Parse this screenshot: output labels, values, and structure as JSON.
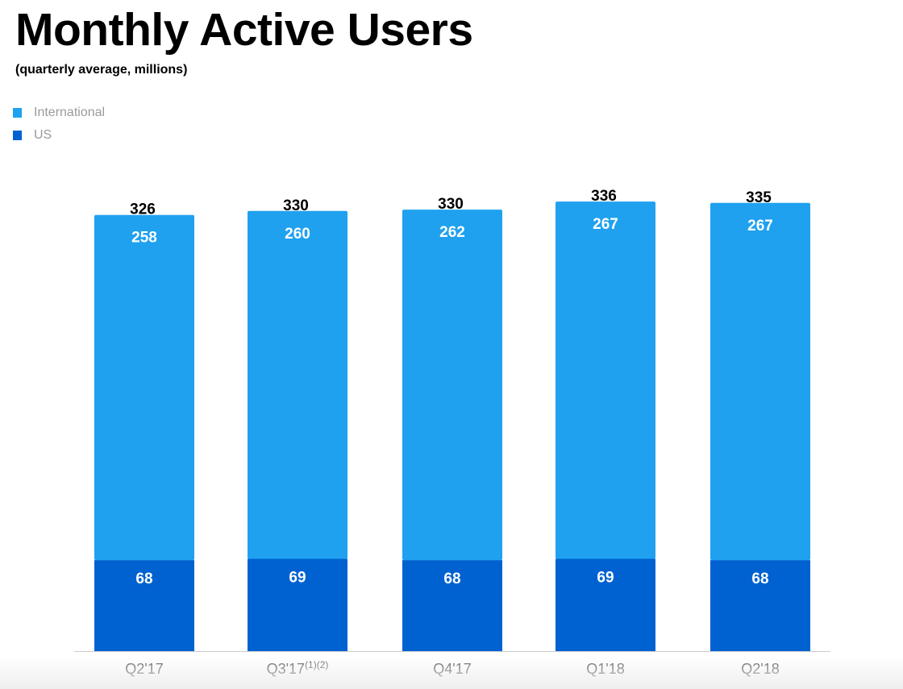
{
  "chart_data": {
    "type": "bar",
    "stacked": true,
    "title": "Monthly Active Users",
    "subtitle": "(quarterly average, millions)",
    "categories": [
      "Q2'17",
      "Q3'17",
      "Q4'17",
      "Q1'18",
      "Q2'18"
    ],
    "category_superscripts": [
      "",
      "(1)(2)",
      "",
      "",
      ""
    ],
    "series": [
      {
        "name": "US",
        "values": [
          68,
          69,
          68,
          69,
          68
        ],
        "color": "#0062d1"
      },
      {
        "name": "International",
        "values": [
          258,
          260,
          262,
          267,
          267
        ],
        "color": "#1fa1f0"
      }
    ],
    "totals": [
      326,
      330,
      330,
      336,
      335
    ],
    "legend_order": [
      "International",
      "US"
    ],
    "legend_position": "top-left",
    "grid": false
  }
}
